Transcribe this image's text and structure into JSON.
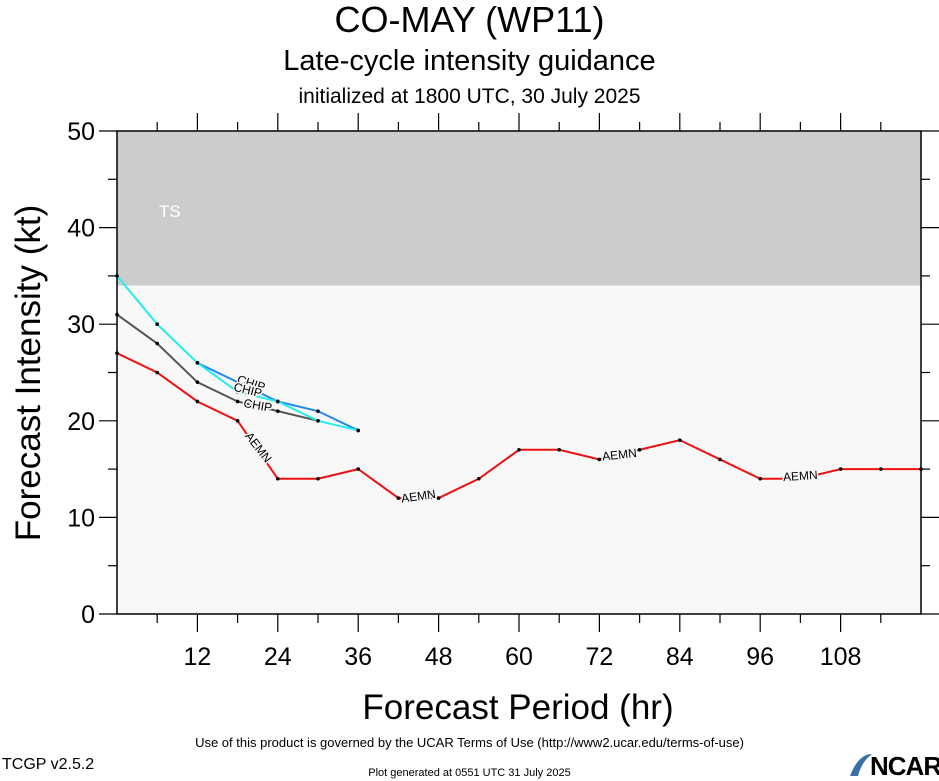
{
  "header": {
    "title": "CO-MAY (WP11)",
    "subtitle": "Late-cycle intensity guidance",
    "init": "initialized at 1800 UTC, 30 July 2025"
  },
  "chart_data": {
    "type": "line",
    "xlabel": "Forecast Period (hr)",
    "ylabel": "Forecast Intensity (kt)",
    "xlim": [
      0,
      120
    ],
    "ylim": [
      0,
      50
    ],
    "xticks": [
      12,
      24,
      36,
      48,
      60,
      72,
      84,
      96,
      108
    ],
    "yticks": [
      0,
      10,
      20,
      30,
      40,
      50
    ],
    "band": {
      "label": "TS",
      "from": 34,
      "to": 50,
      "color": "#cccccc"
    },
    "plot_bg": "#f8f8f8",
    "series": [
      {
        "name": "AEMN",
        "color": "#ee1111",
        "x": [
          0,
          6,
          12,
          18,
          24,
          30,
          36,
          42,
          48,
          54,
          60,
          66,
          72,
          78,
          84,
          90,
          96,
          102,
          108,
          114,
          120
        ],
        "y": [
          27,
          25,
          22,
          20,
          14,
          14,
          15,
          12,
          12,
          14,
          17,
          17,
          16,
          17,
          18,
          16,
          14,
          14,
          15,
          15,
          15
        ]
      },
      {
        "name": "CHIP",
        "color": "#555555",
        "x": [
          0,
          6,
          12,
          18,
          24,
          30
        ],
        "y": [
          31,
          28,
          24,
          22,
          21,
          20
        ]
      },
      {
        "name": "CHIP",
        "color": "#2288ee",
        "x": [
          12,
          18,
          24,
          30,
          36
        ],
        "y": [
          26,
          24,
          22,
          21,
          19
        ]
      },
      {
        "name": "",
        "color": "#22eeee",
        "x": [
          0,
          6,
          12,
          18,
          24,
          30,
          36
        ],
        "y": [
          35,
          30,
          26,
          23,
          22,
          20,
          19
        ]
      }
    ],
    "annotations": [
      {
        "text": "CHIP",
        "x": 20,
        "y": 23.8,
        "angle": 18
      },
      {
        "text": "CHIP",
        "x": 19.5,
        "y": 23.1,
        "angle": 14
      },
      {
        "text": "CHIP",
        "x": 21,
        "y": 21.5,
        "angle": 10
      },
      {
        "text": "AEMN",
        "x": 21,
        "y": 17.2,
        "angle": 52
      },
      {
        "text": "AEMN",
        "x": 45,
        "y": 12.1,
        "angle": -8
      },
      {
        "text": "AEMN",
        "x": 75,
        "y": 16.4,
        "angle": -6
      },
      {
        "text": "AEMN",
        "x": 102,
        "y": 14.2,
        "angle": -4
      }
    ]
  },
  "footer": {
    "terms": "Use of this product is governed by the UCAR Terms of Use (http://www2.ucar.edu/terms-of-use)",
    "version": "TCGP v2.5.2",
    "generated": "Plot generated at 0551 UTC   31 July 2025",
    "logo": "NCAR"
  }
}
